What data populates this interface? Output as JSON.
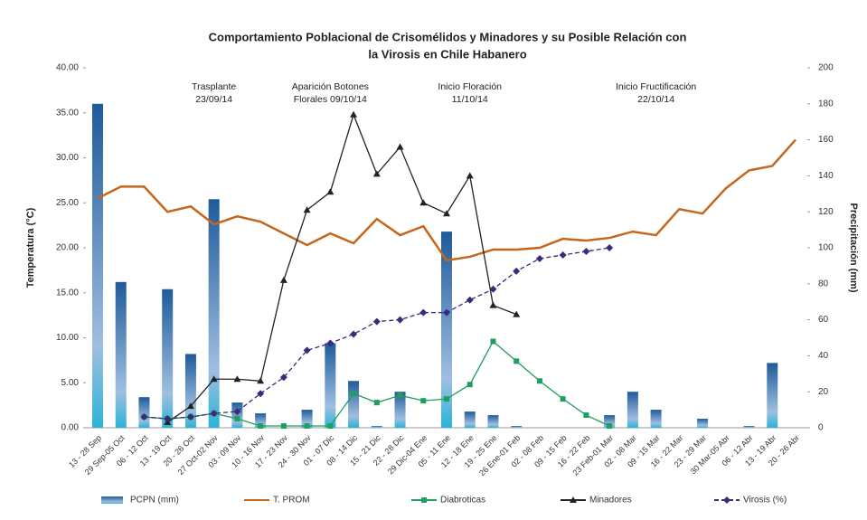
{
  "chart_data": {
    "type": "combo",
    "title_lines": [
      "Comportamiento Poblacional de Crisomélidos y Minadores y su Posible Relación con",
      "la Virosis en Chile Habanero"
    ],
    "y_label": "Temperatura (°C)",
    "y2_label": "Precipitación (mm)",
    "annotations": [
      {
        "lines": [
          "Trasplante",
          "23/09/14"
        ],
        "category": 5
      },
      {
        "lines": [
          "Aparición Botones",
          "Florales 09/10/14"
        ],
        "category": 10
      },
      {
        "lines": [
          "Inicio Floración",
          "11/10/14"
        ],
        "category": 16
      },
      {
        "lines": [
          "Inicio Fructificación",
          "22/10/14"
        ],
        "category": 24
      }
    ],
    "categories": [
      "13 - 28 Sep",
      "29 Sep-05 Oct",
      "06 - 12 Oct",
      "13 - 19 Oct",
      "20 - 26 Oct",
      "27 Oct-02 Nov",
      "03 - 09 Nov",
      "10 - 16 Nov",
      "17 - 23 Nov",
      "24 - 30 Nov",
      "01 - 07 Dic",
      "08 - 14 Dic",
      "15 - 21 Dic",
      "22 - 28 Dic",
      "29 Dic-04 Ene",
      "05 - 11 Ene",
      "12 - 18 Ene",
      "19 - 25 Ene",
      "26 Ene-01 Feb",
      "02 - 08 Feb",
      "09 - 15 Feb",
      "16 - 22 Feb",
      "23 Feb-01 Mar",
      "02 - 08 Mar",
      "09 - 15 Mar",
      "16 - 22 Mar",
      "23 - 29 Mar",
      "30 Mar-05 Abr",
      "06 - 12 Abr",
      "13 - 19 Abr",
      "20 - 26 Abr"
    ],
    "ylim": [
      0,
      40
    ],
    "yticks": [
      {
        "value": 0,
        "label": "0.00"
      },
      {
        "value": 5,
        "label": "5.00"
      },
      {
        "value": 10,
        "label": "10.00"
      },
      {
        "value": 15,
        "label": "15.00"
      },
      {
        "value": 20,
        "label": "20.00"
      },
      {
        "value": 25,
        "label": "25.00"
      },
      {
        "value": 30,
        "label": "30.00"
      },
      {
        "value": 35,
        "label": "35.00"
      },
      {
        "value": 40,
        "label": "40.00"
      }
    ],
    "y2lim": [
      0,
      200
    ],
    "y2ticks": [
      0,
      20,
      40,
      60,
      80,
      100,
      120,
      140,
      160,
      180,
      200
    ],
    "series": [
      {
        "name": "PCPN (mm)",
        "kind": "bar",
        "axis": "y2",
        "color": "#2e6fb0",
        "values": [
          180,
          81,
          17,
          77,
          41,
          127,
          14,
          8,
          0,
          10,
          47,
          26,
          1,
          20,
          0,
          109,
          9,
          7,
          1,
          0,
          0,
          0,
          7,
          20,
          10,
          0,
          5,
          0,
          1,
          36,
          0
        ]
      },
      {
        "name": "T. PROM",
        "kind": "line",
        "color": "#c5661b",
        "values": [
          25.5,
          26.8,
          26.8,
          24,
          24.6,
          22.6,
          23.5,
          22.9,
          21.6,
          20.3,
          21.6,
          20.5,
          23.2,
          21.4,
          22.4,
          18.6,
          19,
          19.8,
          19.8,
          20,
          21,
          20.8,
          21.1,
          21.8,
          21.4,
          24.3,
          23.8,
          26.6,
          28.6,
          29.1,
          32
        ]
      },
      {
        "name": "Diabroticas",
        "kind": "line",
        "axis": "y2",
        "color": "#1f9e5e",
        "marker": "square",
        "values": [
          null,
          null,
          6,
          5,
          6,
          8,
          5,
          1,
          1,
          1,
          1,
          19,
          14,
          18,
          15,
          16,
          24,
          48,
          37,
          26,
          16,
          7,
          1,
          null,
          null,
          null,
          null,
          null,
          null,
          null,
          null
        ]
      },
      {
        "name": "Minadores",
        "kind": "line",
        "axis": "y2",
        "color": "#222222",
        "marker": "triangle",
        "values": [
          null,
          null,
          null,
          3,
          12,
          27,
          27,
          26,
          82,
          121,
          131,
          174,
          141,
          156,
          125,
          119,
          140,
          68,
          63,
          null,
          null,
          null,
          null,
          null,
          null,
          null,
          null,
          null,
          null,
          null,
          null
        ]
      },
      {
        "name": "Virosis (%)",
        "kind": "line",
        "axis": "y2",
        "color": "#3b2a7a",
        "marker": "diamond",
        "dashed": true,
        "values": [
          null,
          null,
          6,
          5,
          6,
          8,
          9,
          19,
          28,
          43,
          47,
          52,
          59,
          60,
          64,
          64,
          71,
          77,
          87,
          94,
          96,
          98,
          100,
          null,
          null,
          null,
          null,
          null,
          null,
          null,
          null
        ]
      }
    ]
  }
}
